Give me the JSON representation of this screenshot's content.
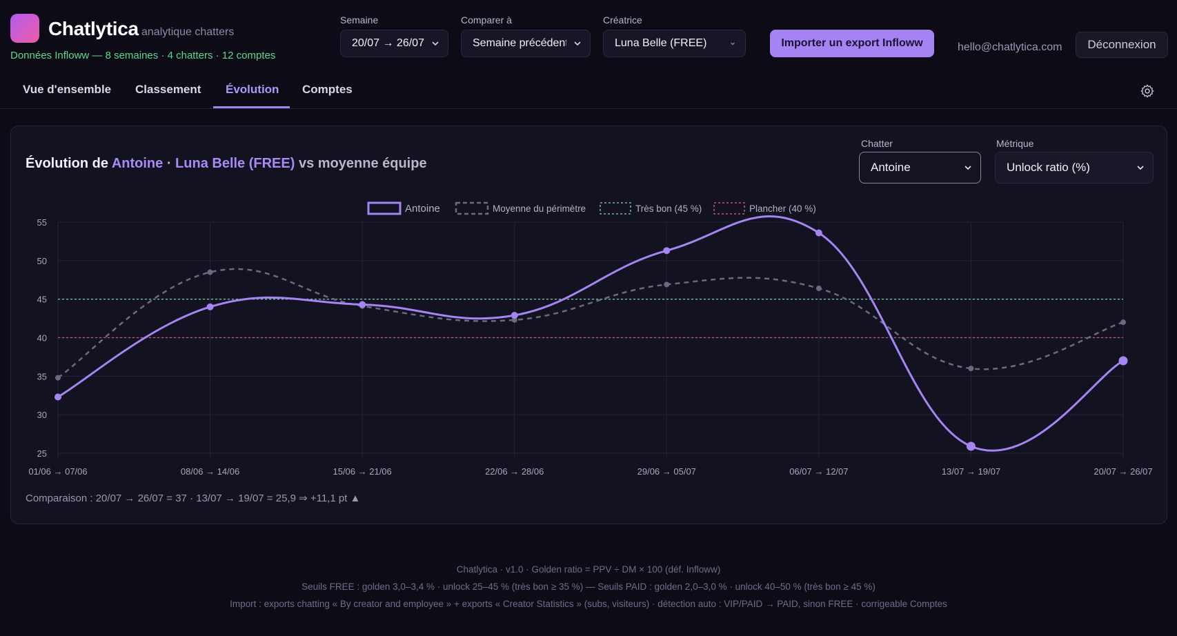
{
  "app": {
    "name": "Chatlytica",
    "subtitle": "analytique chatters",
    "data_summary": "Données Infloww — 8 semaines · 4 chatters · 12 comptes"
  },
  "filters": {
    "week_label": "Semaine",
    "week_value": "20/07 → 26/07",
    "compare_label": "Comparer à",
    "compare_value": "Semaine précédente",
    "creator_label": "Créatrice",
    "creator_value": "Luna Belle (FREE)"
  },
  "header": {
    "import_button": "Importer un export Infloww",
    "email": "hello@chatlytica.com",
    "logout_button": "Déconnexion"
  },
  "tabs": [
    {
      "label": "Vue d'ensemble"
    },
    {
      "label": "Classement"
    },
    {
      "label": "Évolution",
      "active": true
    },
    {
      "label": "Comptes"
    }
  ],
  "panel": {
    "title_prefix": "Évolution de ",
    "title_chatter": "Antoine",
    "title_sep": " · ",
    "title_creator": "Luna Belle (FREE)",
    "title_suffix": " vs moyenne équipe",
    "chatter_label": "Chatter",
    "chatter_value": "Antoine",
    "metric_label": "Métrique",
    "metric_value": "Unlock ratio (%)",
    "comparison_text": "Comparaison : 20/07 → 26/07 = 37 · 13/07 → 19/07 = 25,9 ⇒ +11,1 pt ▲"
  },
  "colors": {
    "accent": "#a583f3",
    "series_main": "#a585f2",
    "series_avg": "#6c6a82",
    "threshold_good": "#7ee0b0",
    "threshold_floor": "#e06a86",
    "data_summary": "#59d98f"
  },
  "chart_data": {
    "type": "line",
    "categories": [
      "01/06 → 07/06",
      "08/06 → 14/06",
      "15/06 → 21/06",
      "22/06 → 28/06",
      "29/06 → 05/07",
      "06/07 → 12/07",
      "13/07 → 19/07",
      "20/07 → 26/07"
    ],
    "series": [
      {
        "name": "Antoine",
        "values": [
          32.3,
          44.0,
          44.3,
          42.9,
          51.3,
          53.6,
          25.9,
          37.0
        ],
        "style": "solid"
      },
      {
        "name": "Moyenne du périmètre",
        "values": [
          34.8,
          48.5,
          44.1,
          42.3,
          46.9,
          46.4,
          36.0,
          42.0
        ],
        "style": "dashed"
      }
    ],
    "thresholds": [
      {
        "name": "Très bon (45 %)",
        "value": 45
      },
      {
        "name": "Plancher (40 %)",
        "value": 40
      }
    ],
    "yticks": [
      25,
      30,
      35,
      40,
      45,
      50,
      55
    ],
    "ylim": [
      25,
      55
    ],
    "grid": true,
    "legend": "top-center"
  },
  "icons": {
    "chevron": "chevron-down-icon",
    "settings": "gear-icon"
  },
  "footer": {
    "line1": "Chatlytica · v1.0 · Golden ratio = PPV ÷ DM × 100 (déf. Infloww)",
    "line2": "Seuils FREE : golden 3,0–3,4 % · unlock 25–45 % (très bon ≥ 35 %) — Seuils PAID : golden 2,0–3,0 % · unlock 40–50 % (très bon ≥ 45 %)",
    "line3": "Import : exports chatting « By creator and employee » + exports « Creator Statistics » (subs, visiteurs) · détection auto : VIP/PAID → PAID, sinon FREE · corrigeable Comptes"
  }
}
